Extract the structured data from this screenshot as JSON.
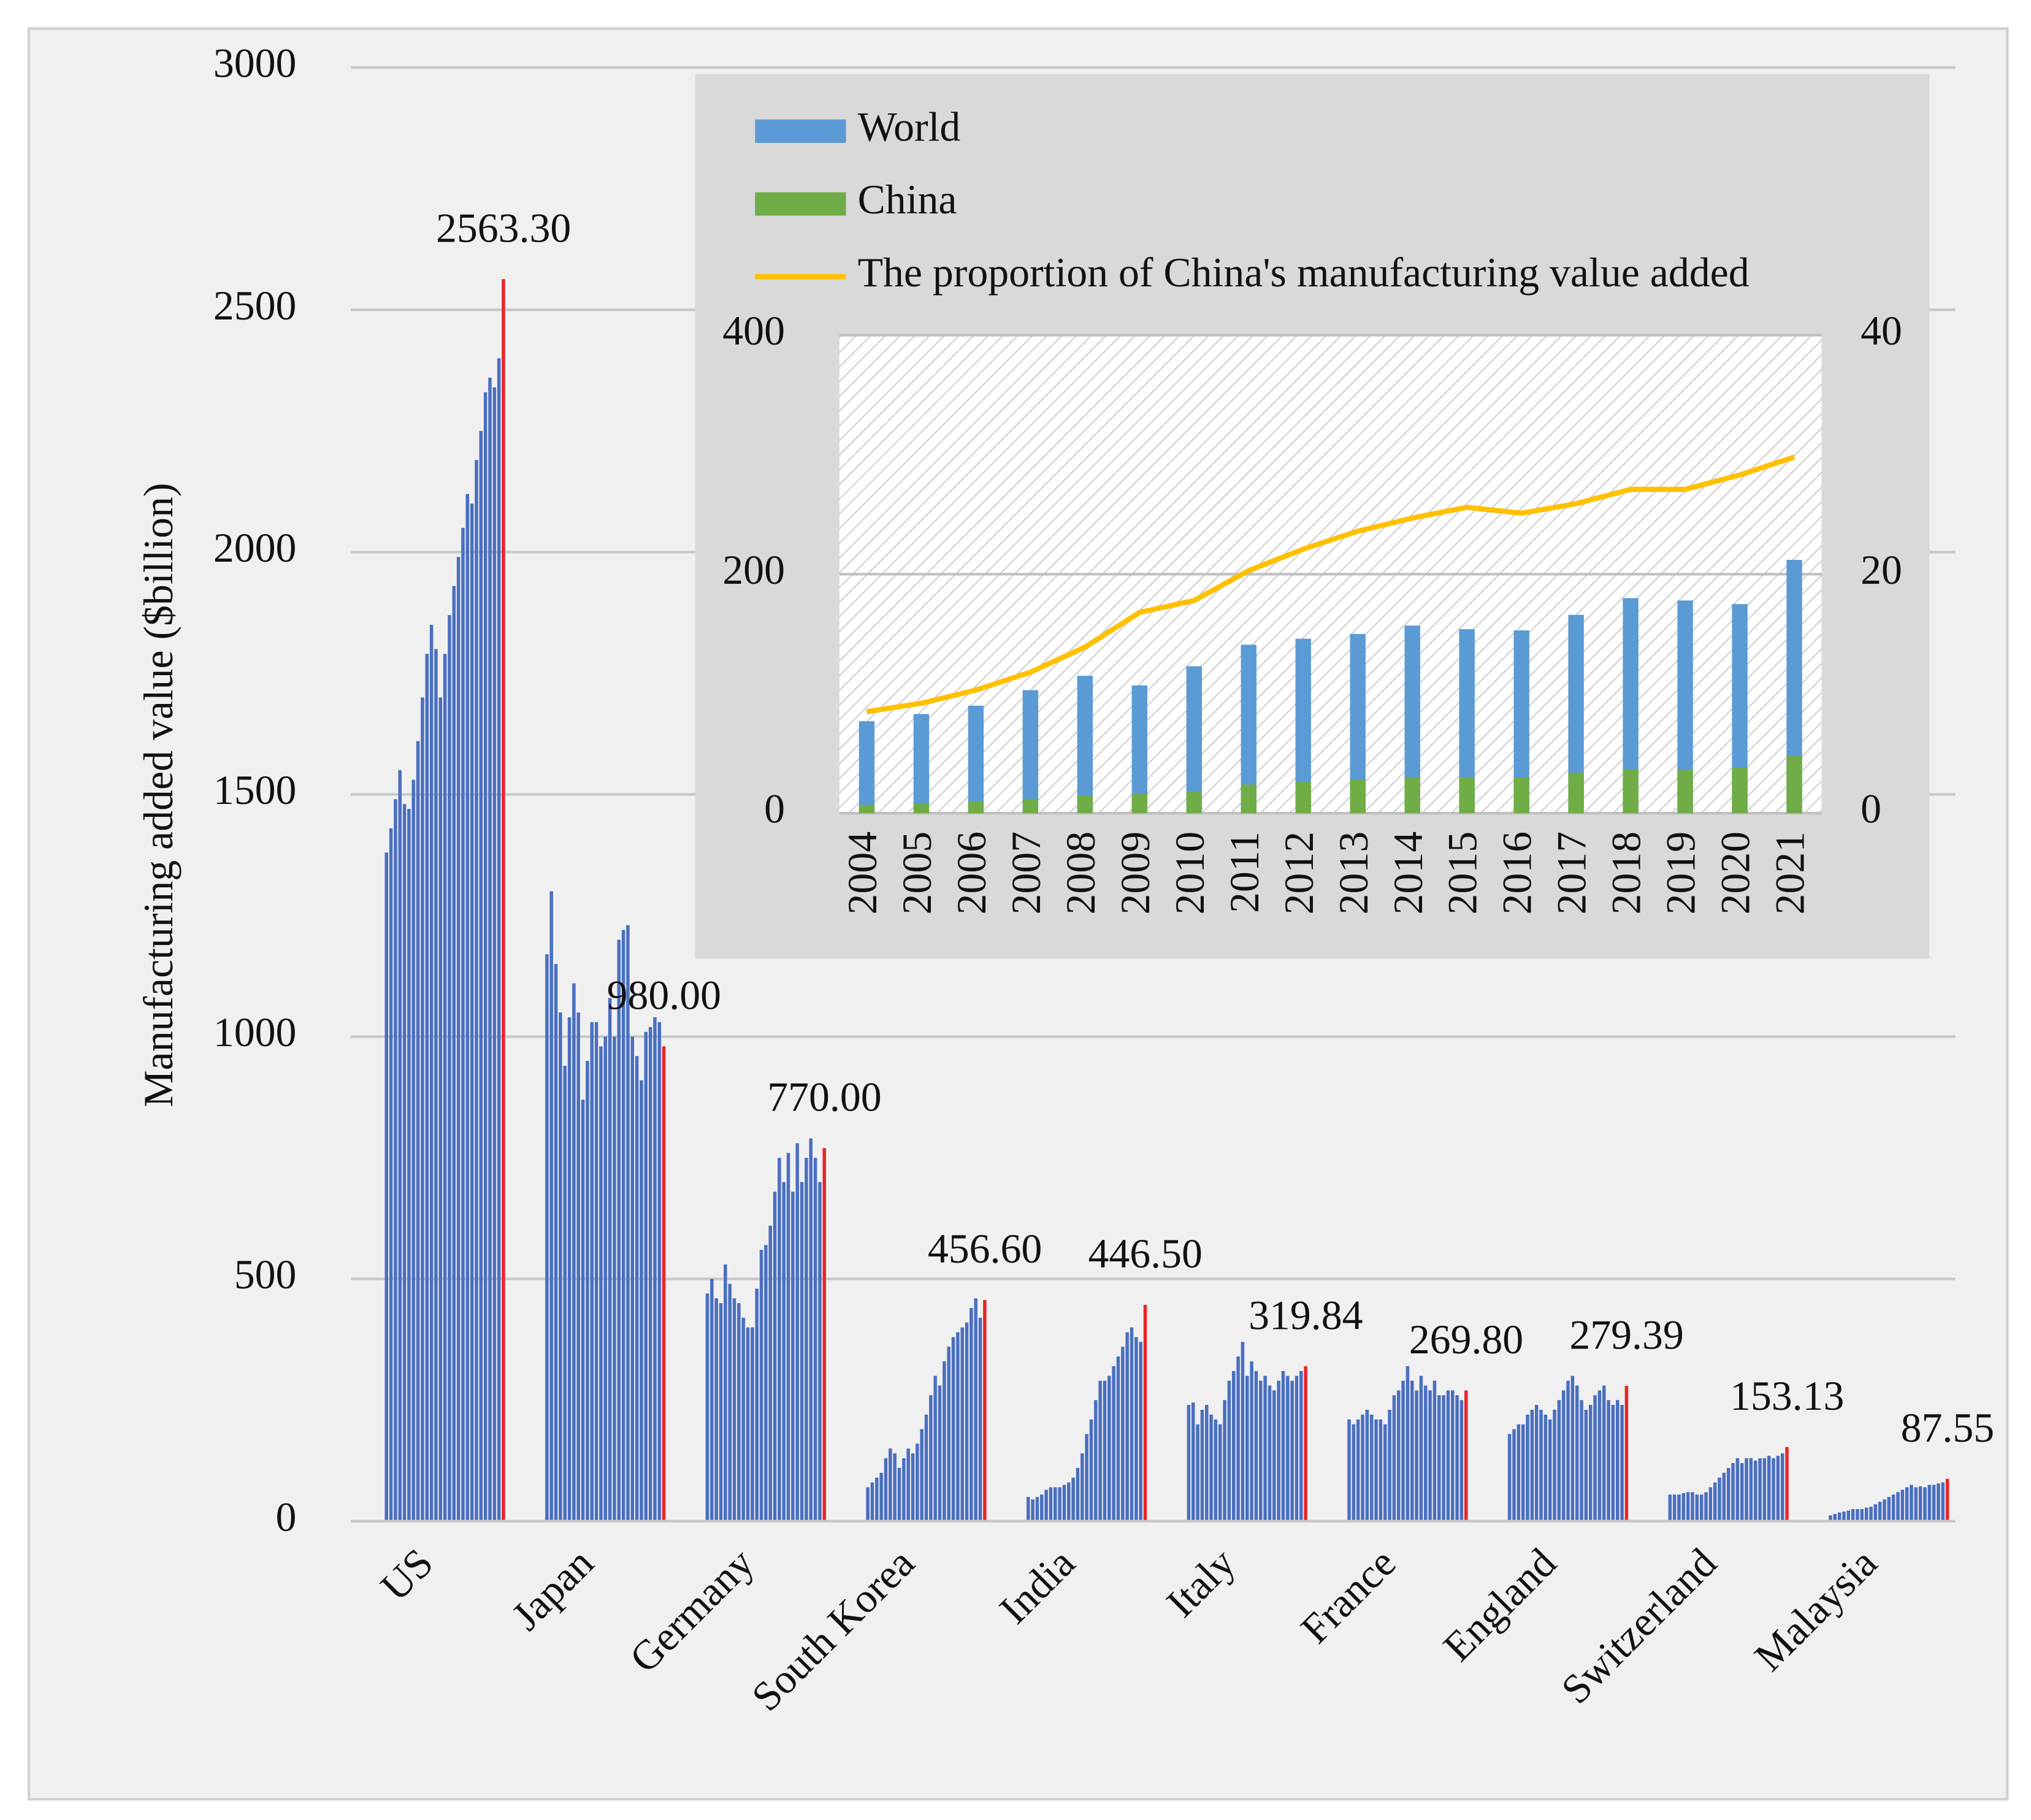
{
  "chart_data": [
    {
      "type": "grouped-bar",
      "y_label": "Manufacturing added value ($billion)",
      "ylim": [
        0,
        3000
      ],
      "yticks": [
        0,
        500,
        1000,
        1500,
        2000,
        2500,
        3000
      ],
      "grid": true,
      "color": "#4a6fc0",
      "highlight_color": "#e8262a",
      "categories": [
        "US",
        "Japan",
        "Germany",
        "South Korea",
        "India",
        "Italy",
        "France",
        "England",
        "Switzerland",
        "Malaysia"
      ],
      "values": [
        [
          1380,
          1430,
          1490,
          1550,
          1480,
          1470,
          1530,
          1610,
          1700,
          1790,
          1850,
          1800,
          1700,
          1790,
          1870,
          1930,
          1990,
          2050,
          2120,
          2100,
          2190,
          2250,
          2330,
          2360,
          2340,
          2400,
          2563.3
        ],
        [
          1170,
          1300,
          1150,
          1050,
          940,
          1040,
          1110,
          1050,
          870,
          950,
          1030,
          1030,
          980,
          1000,
          1080,
          1000,
          1200,
          1220,
          1230,
          1000,
          960,
          910,
          1010,
          1020,
          1040,
          1030,
          980
        ],
        [
          470,
          500,
          460,
          450,
          530,
          490,
          460,
          450,
          420,
          400,
          400,
          480,
          560,
          570,
          610,
          680,
          750,
          700,
          760,
          680,
          780,
          700,
          750,
          790,
          750,
          700,
          770
        ],
        [
          70,
          80,
          90,
          100,
          130,
          150,
          140,
          110,
          130,
          150,
          140,
          160,
          190,
          220,
          260,
          300,
          280,
          330,
          360,
          380,
          390,
          400,
          410,
          440,
          460,
          420,
          456.6
        ],
        [
          50,
          45,
          50,
          55,
          65,
          70,
          70,
          70,
          75,
          80,
          90,
          110,
          140,
          180,
          210,
          250,
          290,
          290,
          300,
          320,
          340,
          360,
          390,
          400,
          380,
          370,
          446.5
        ],
        [
          240,
          245,
          200,
          230,
          240,
          220,
          210,
          200,
          250,
          290,
          310,
          340,
          370,
          300,
          330,
          310,
          290,
          300,
          280,
          270,
          290,
          310,
          300,
          290,
          300,
          310,
          319.84
        ],
        [
          210,
          200,
          210,
          220,
          230,
          220,
          210,
          210,
          200,
          230,
          260,
          270,
          290,
          320,
          290,
          270,
          300,
          280,
          270,
          290,
          260,
          260,
          270,
          270,
          260,
          250,
          269.8
        ],
        [
          180,
          190,
          200,
          200,
          220,
          230,
          240,
          230,
          220,
          210,
          230,
          250,
          270,
          290,
          300,
          280,
          250,
          230,
          240,
          260,
          270,
          280,
          250,
          240,
          250,
          240,
          279.39
        ],
        [
          55,
          55,
          55,
          58,
          60,
          60,
          55,
          55,
          60,
          70,
          80,
          90,
          100,
          110,
          120,
          130,
          120,
          130,
          130,
          125,
          130,
          130,
          135,
          130,
          135,
          140,
          153.13
        ],
        [
          12,
          15,
          18,
          20,
          22,
          25,
          25,
          25,
          28,
          30,
          35,
          40,
          45,
          50,
          55,
          60,
          65,
          70,
          75,
          70,
          72,
          70,
          75,
          75,
          78,
          80,
          87.55
        ]
      ],
      "value_labels": [
        "2563.30",
        "980.00",
        "770.00",
        "456.60",
        "446.50",
        "319.84",
        "269.80",
        "279.39",
        "153.13",
        "87.55"
      ]
    },
    {
      "type": "bar-line",
      "categories": [
        "2004",
        "2005",
        "2006",
        "2007",
        "2008",
        "2009",
        "2010",
        "2011",
        "2012",
        "2013",
        "2014",
        "2015",
        "2016",
        "2017",
        "2018",
        "2019",
        "2020",
        "2021"
      ],
      "ylim": [
        0,
        400
      ],
      "yticks": [
        0,
        200,
        400
      ],
      "y2lim": [
        0,
        40
      ],
      "y2ticks": [
        0,
        20,
        40
      ],
      "series": [
        {
          "name": "World",
          "color": "#5b9bd5",
          "type": "bar",
          "values": [
            77,
            83,
            90,
            103,
            115,
            107,
            123,
            141,
            146,
            150,
            157,
            154,
            153,
            166,
            180,
            178,
            175,
            212
          ]
        },
        {
          "name": "China",
          "color": "#70ad47",
          "type": "bar",
          "values": [
            7,
            8,
            10,
            12,
            15,
            16,
            18,
            24,
            26,
            28,
            30,
            30,
            30,
            34,
            37,
            36,
            38,
            48
          ]
        },
        {
          "name": "The proportion of China's manufacturing value added",
          "color": "#ffc000",
          "type": "line",
          "axis": "y2",
          "values": [
            8.5,
            9.2,
            10.3,
            11.8,
            13.9,
            16.8,
            17.8,
            20.3,
            22.1,
            23.6,
            24.7,
            25.6,
            25.1,
            25.9,
            27.1,
            27.1,
            28.3,
            29.8
          ]
        }
      ]
    }
  ]
}
